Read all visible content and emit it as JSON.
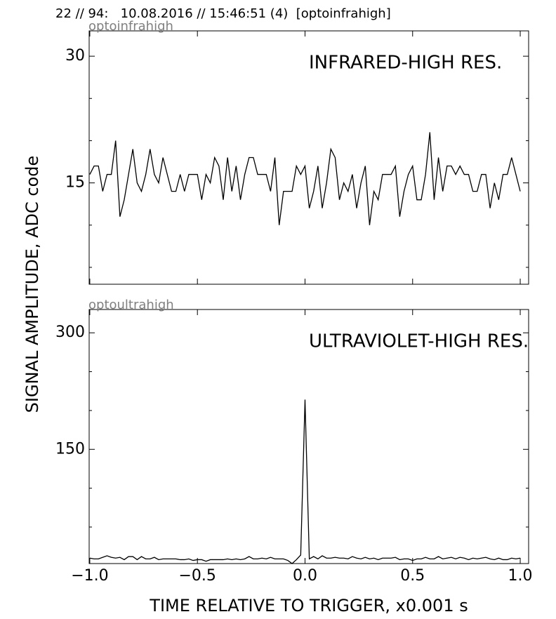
{
  "header": "22 // 94:   10.08.2016 // 15:46:51 (4)  [optoinfrahigh]",
  "ylabel": "SIGNAL AMPLITUDE,  ADC code",
  "xlabel": "TIME RELATIVE TO TRIGGER,   x0.001 s",
  "chart_data": [
    {
      "type": "line",
      "subtitle": "optoinfrahigh",
      "annotation": "INFRARED-HIGH RES.",
      "color": "#000000",
      "x": [
        -1.0,
        -0.98,
        -0.96,
        -0.94,
        -0.92,
        -0.9,
        -0.88,
        -0.86,
        -0.84,
        -0.82,
        -0.8,
        -0.78,
        -0.76,
        -0.74,
        -0.72,
        -0.7,
        -0.68,
        -0.66,
        -0.64,
        -0.62,
        -0.6,
        -0.58,
        -0.56,
        -0.54,
        -0.52,
        -0.5,
        -0.48,
        -0.46,
        -0.44,
        -0.42,
        -0.4,
        -0.38,
        -0.36,
        -0.34,
        -0.32,
        -0.3,
        -0.28,
        -0.26,
        -0.24,
        -0.22,
        -0.2,
        -0.18,
        -0.16,
        -0.14,
        -0.12,
        -0.1,
        -0.08,
        -0.06,
        -0.04,
        -0.02,
        0.0,
        0.02,
        0.04,
        0.06,
        0.08,
        0.1,
        0.12,
        0.14,
        0.16,
        0.18,
        0.2,
        0.22,
        0.24,
        0.26,
        0.28,
        0.3,
        0.32,
        0.34,
        0.36,
        0.38,
        0.4,
        0.42,
        0.44,
        0.46,
        0.48,
        0.5,
        0.52,
        0.54,
        0.56,
        0.58,
        0.6,
        0.62,
        0.64,
        0.66,
        0.68,
        0.7,
        0.72,
        0.74,
        0.76,
        0.78,
        0.8,
        0.82,
        0.84,
        0.86,
        0.88,
        0.9,
        0.92,
        0.94,
        0.96,
        0.98,
        1.0
      ],
      "values": [
        16,
        17,
        17,
        14,
        16,
        16,
        20,
        11,
        13,
        16,
        19,
        15,
        14,
        16,
        19,
        16,
        15,
        18,
        16,
        14,
        14,
        16,
        14,
        16,
        16,
        16,
        13,
        16,
        15,
        18,
        17,
        13,
        18,
        14,
        17,
        13,
        16,
        18,
        18,
        16,
        16,
        16,
        14,
        18,
        10,
        14,
        14,
        14,
        17,
        16,
        17,
        12,
        14,
        17,
        12,
        15,
        19,
        18,
        13,
        15,
        14,
        16,
        12,
        15,
        17,
        10,
        14,
        13,
        16,
        16,
        16,
        17,
        11,
        14,
        16,
        17,
        13,
        13,
        16,
        21,
        13,
        18,
        14,
        17,
        17,
        16,
        17,
        16,
        16,
        14,
        14,
        16,
        16,
        12,
        15,
        13,
        16,
        16,
        18,
        16,
        14
      ],
      "xlim": [
        -1.003,
        1.039
      ],
      "ylim": [
        3,
        33
      ],
      "xticks": [
        -1.0,
        -0.5,
        0.0,
        0.5,
        1.0
      ],
      "yticks": [
        15,
        30
      ],
      "yminorticks": [
        5,
        10,
        20,
        25
      ]
    },
    {
      "type": "line",
      "subtitle": "optoultrahigh",
      "annotation": "ULTRAVIOLET-HIGH RES.",
      "color": "#000000",
      "x": [
        -1.0,
        -0.98,
        -0.96,
        -0.94,
        -0.92,
        -0.9,
        -0.88,
        -0.86,
        -0.84,
        -0.82,
        -0.8,
        -0.78,
        -0.76,
        -0.74,
        -0.72,
        -0.7,
        -0.68,
        -0.66,
        -0.64,
        -0.62,
        -0.6,
        -0.58,
        -0.56,
        -0.54,
        -0.52,
        -0.5,
        -0.48,
        -0.46,
        -0.44,
        -0.42,
        -0.4,
        -0.38,
        -0.36,
        -0.34,
        -0.32,
        -0.3,
        -0.28,
        -0.26,
        -0.24,
        -0.22,
        -0.2,
        -0.18,
        -0.16,
        -0.14,
        -0.12,
        -0.1,
        -0.08,
        -0.06,
        -0.04,
        -0.02,
        0.0,
        0.02,
        0.04,
        0.06,
        0.08,
        0.1,
        0.12,
        0.14,
        0.16,
        0.18,
        0.2,
        0.22,
        0.24,
        0.26,
        0.28,
        0.3,
        0.32,
        0.34,
        0.36,
        0.38,
        0.4,
        0.42,
        0.44,
        0.46,
        0.48,
        0.5,
        0.52,
        0.54,
        0.56,
        0.58,
        0.6,
        0.62,
        0.64,
        0.66,
        0.68,
        0.7,
        0.72,
        0.74,
        0.76,
        0.78,
        0.8,
        0.82,
        0.84,
        0.86,
        0.88,
        0.9,
        0.92,
        0.94,
        0.96,
        0.98,
        1.0
      ],
      "values": [
        10,
        9,
        9,
        11,
        13,
        11,
        10,
        11,
        8,
        12,
        12,
        8,
        12,
        9,
        9,
        11,
        8,
        9,
        9,
        9,
        9,
        8,
        8,
        9,
        7,
        8,
        8,
        6,
        8,
        8,
        8,
        8,
        9,
        8,
        9,
        8,
        9,
        12,
        9,
        9,
        10,
        9,
        11,
        9,
        9,
        9,
        7,
        3,
        8,
        14,
        214,
        9,
        12,
        9,
        13,
        10,
        10,
        11,
        10,
        10,
        9,
        12,
        10,
        9,
        11,
        9,
        10,
        8,
        10,
        10,
        10,
        11,
        8,
        9,
        9,
        7,
        9,
        9,
        11,
        9,
        9,
        12,
        9,
        10,
        11,
        9,
        11,
        10,
        8,
        10,
        9,
        10,
        11,
        9,
        8,
        10,
        8,
        8,
        10,
        9,
        10
      ],
      "xlim": [
        -1.003,
        1.039
      ],
      "ylim": [
        3,
        330
      ],
      "xticks": [
        {
          "value": -1.0,
          "label": "−1.0"
        },
        {
          "value": -0.5,
          "label": "−0.5"
        },
        {
          "value": 0.0,
          "label": "0.0"
        },
        {
          "value": 0.5,
          "label": "0.5"
        },
        {
          "value": 1.0,
          "label": "1.0"
        }
      ],
      "yticks": [
        150,
        300
      ],
      "yminorticks": [
        50,
        100,
        200,
        250
      ]
    }
  ]
}
